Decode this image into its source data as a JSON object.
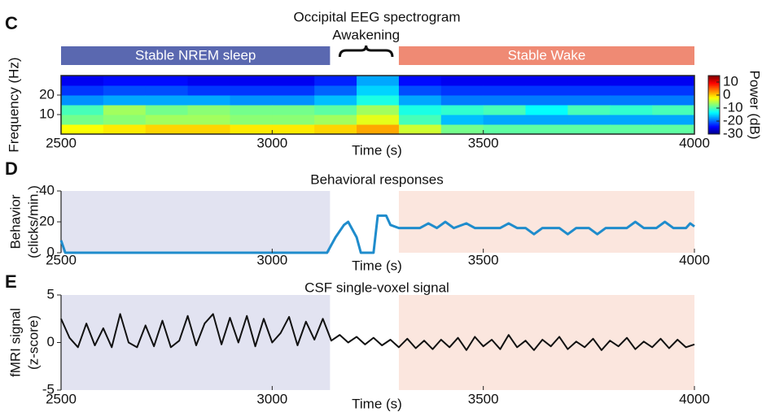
{
  "chart_data": [
    {
      "type": "heatmap",
      "panel": "C",
      "title": "Occipital EEG spectrogram",
      "annotation": "Awakening",
      "periods": [
        {
          "label": "Stable NREM sleep",
          "start": 2500,
          "end": 3137,
          "color": "#5a68b0",
          "shade": "#e2e3f1"
        },
        {
          "label": "Stable Wake",
          "start": 3300,
          "end": 4000,
          "color": "#ef8a74",
          "shade": "#fbe6de"
        }
      ],
      "xbins": [
        2500,
        2600,
        2700,
        2800,
        2900,
        3000,
        3100,
        3200,
        3300,
        3400,
        3500,
        3600,
        3700,
        3800,
        3900,
        4000
      ],
      "ybins": [
        0,
        5,
        10,
        15,
        20,
        25,
        30
      ],
      "values": [
        [
          -2,
          -8,
          -10,
          -18,
          -22,
          -25
        ],
        [
          -1,
          -7,
          -6,
          -17,
          -21,
          -24
        ],
        [
          0,
          -6,
          -8,
          -17,
          -21,
          -24
        ],
        [
          0,
          -6,
          -7,
          -17,
          -22,
          -25
        ],
        [
          -1,
          -7,
          -8,
          -18,
          -22,
          -25
        ],
        [
          -1,
          -7,
          -8,
          -18,
          -22,
          -25
        ],
        [
          0,
          -6,
          -9,
          -16,
          -20,
          -23
        ],
        [
          2,
          -3,
          -6,
          -12,
          -15,
          -17
        ],
        [
          -4,
          -10,
          -12,
          -17,
          -21,
          -24
        ],
        [
          -8,
          -16,
          -11,
          -19,
          -22,
          -25
        ],
        [
          -9,
          -17,
          -10,
          -19,
          -22,
          -25
        ],
        [
          -9,
          -17,
          -13,
          -19,
          -22,
          -25
        ],
        [
          -9,
          -17,
          -10,
          -19,
          -22,
          -25
        ],
        [
          -9,
          -17,
          -11,
          -19,
          -22,
          -25
        ],
        [
          -9,
          -17,
          -10,
          -19,
          -22,
          -25
        ]
      ],
      "colormap": "jet",
      "clim": [
        -30,
        15
      ],
      "cticks": [
        10,
        0,
        -10,
        -20,
        -30
      ],
      "clabel": "Power (dB)",
      "xlim": [
        2500,
        4000
      ],
      "xticks": [
        2500,
        3000,
        3500,
        4000
      ],
      "xlabel": "Time (s)",
      "ylim": [
        0,
        30
      ],
      "yticks": [
        10,
        20
      ],
      "ylabel": [
        "Frequency (Hz)"
      ]
    },
    {
      "type": "line",
      "panel": "D",
      "title": "Behavioral responses",
      "color": "#1f8ccc",
      "x": [
        2500,
        2510,
        3130,
        3150,
        3170,
        3180,
        3200,
        3210,
        3240,
        3250,
        3270,
        3280,
        3300,
        3350,
        3370,
        3390,
        3410,
        3430,
        3460,
        3480,
        3540,
        3560,
        3580,
        3600,
        3620,
        3640,
        3680,
        3700,
        3720,
        3750,
        3770,
        3790,
        3840,
        3860,
        3880,
        3910,
        3930,
        3950,
        3980,
        3990,
        4000
      ],
      "values": [
        8,
        0,
        0,
        10,
        18,
        20,
        10,
        0,
        0,
        24,
        24,
        18,
        16,
        16,
        19,
        16,
        20,
        16,
        19,
        16,
        16,
        19,
        16,
        16,
        12,
        16,
        16,
        12,
        16,
        16,
        12,
        16,
        16,
        20,
        16,
        16,
        20,
        16,
        16,
        19,
        17
      ],
      "xlim": [
        2500,
        4000
      ],
      "xticks": [
        2500,
        3000,
        3500,
        4000
      ],
      "xlabel": "Time (s)",
      "ylim": [
        0,
        40
      ],
      "yticks": [
        0,
        20,
        40
      ],
      "ylabel": [
        "Behavior",
        "(clicks/min.)"
      ]
    },
    {
      "type": "line",
      "panel": "E",
      "title": "CSF single-voxel signal",
      "color": "#111111",
      "x": [
        2500,
        2520,
        2540,
        2560,
        2580,
        2600,
        2620,
        2640,
        2660,
        2680,
        2700,
        2720,
        2740,
        2760,
        2780,
        2800,
        2820,
        2840,
        2860,
        2880,
        2900,
        2920,
        2940,
        2960,
        2980,
        3000,
        3020,
        3040,
        3060,
        3080,
        3100,
        3120,
        3140,
        3160,
        3180,
        3200,
        3220,
        3240,
        3260,
        3280,
        3300,
        3320,
        3340,
        3360,
        3380,
        3400,
        3420,
        3440,
        3460,
        3480,
        3500,
        3520,
        3540,
        3560,
        3580,
        3600,
        3620,
        3640,
        3660,
        3680,
        3700,
        3720,
        3740,
        3760,
        3780,
        3800,
        3820,
        3840,
        3860,
        3880,
        3900,
        3920,
        3940,
        3960,
        3980,
        4000
      ],
      "values": [
        2.5,
        0.5,
        -0.5,
        2.0,
        -0.3,
        1.5,
        -0.5,
        3.0,
        0.0,
        -0.5,
        1.8,
        -0.4,
        2.3,
        -0.5,
        0.2,
        2.8,
        -0.3,
        2.0,
        3.0,
        -0.2,
        2.6,
        0.0,
        2.8,
        -0.4,
        2.5,
        0.0,
        1.0,
        2.7,
        -0.3,
        2.2,
        0.3,
        2.5,
        0.2,
        0.8,
        0.0,
        0.6,
        -0.2,
        0.5,
        -0.3,
        0.3,
        -0.5,
        0.4,
        -0.6,
        0.2,
        -0.7,
        0.3,
        -0.5,
        0.5,
        -0.8,
        0.6,
        -0.4,
        0.3,
        -0.7,
        0.8,
        -0.5,
        0.2,
        -0.8,
        0.3,
        -0.4,
        0.6,
        -0.7,
        0.1,
        -0.5,
        0.4,
        -0.8,
        0.2,
        -0.4,
        0.5,
        -0.7,
        0.1,
        -0.5,
        0.4,
        -0.6,
        0.3,
        -0.5,
        -0.2
      ],
      "xlim": [
        2500,
        4000
      ],
      "xticks": [
        2500,
        3000,
        3500,
        4000
      ],
      "xlabel": "Time (s)",
      "ylim": [
        -5,
        5
      ],
      "yticks": [
        -5,
        0,
        5
      ],
      "ylabel": [
        "fMRI signal",
        "(z-score)"
      ]
    }
  ]
}
